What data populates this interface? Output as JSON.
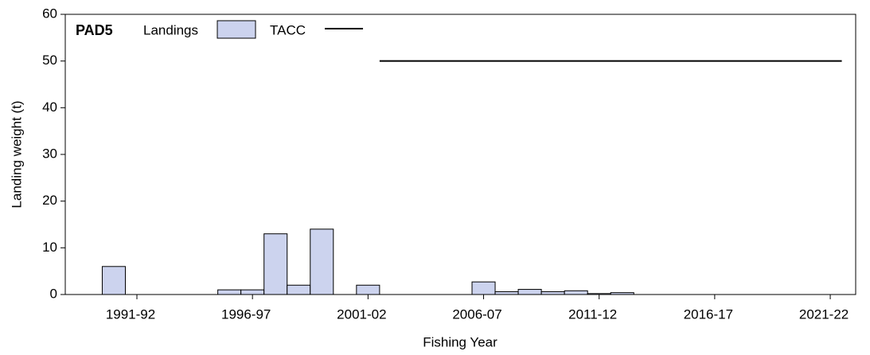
{
  "chart_data": {
    "type": "bar",
    "title": "PAD5",
    "xlabel": "Fishing Year",
    "ylabel": "Landing weight (t)",
    "xlim": [
      1988.4,
      2022.6
    ],
    "xticks": [
      {
        "value": 1991.5,
        "label": "1991-92"
      },
      {
        "value": 1996.5,
        "label": "1996-97"
      },
      {
        "value": 2001.5,
        "label": "2001-02"
      },
      {
        "value": 2006.5,
        "label": "2006-07"
      },
      {
        "value": 2011.5,
        "label": "2011-12"
      },
      {
        "value": 2016.5,
        "label": "2016-17"
      },
      {
        "value": 2021.5,
        "label": "2021-22"
      }
    ],
    "ylim": [
      0,
      60
    ],
    "yticks": [
      0,
      10,
      20,
      30,
      40,
      50,
      60
    ],
    "series": [
      {
        "name": "Landings",
        "type": "bar",
        "color": "#ccd3ee",
        "x": [
          1990,
          1995,
          1996,
          1997,
          1998,
          1999,
          2001,
          2006,
          2007,
          2008,
          2009,
          2010,
          2011,
          2012
        ],
        "values": [
          6,
          1,
          1,
          13,
          2,
          14,
          2,
          2.7,
          0.6,
          1.1,
          0.6,
          0.8,
          0.2,
          0.4
        ]
      },
      {
        "name": "TACC",
        "type": "line",
        "color": "#000000",
        "x": [
          2002,
          2022
        ],
        "values": [
          50,
          50
        ]
      }
    ]
  }
}
